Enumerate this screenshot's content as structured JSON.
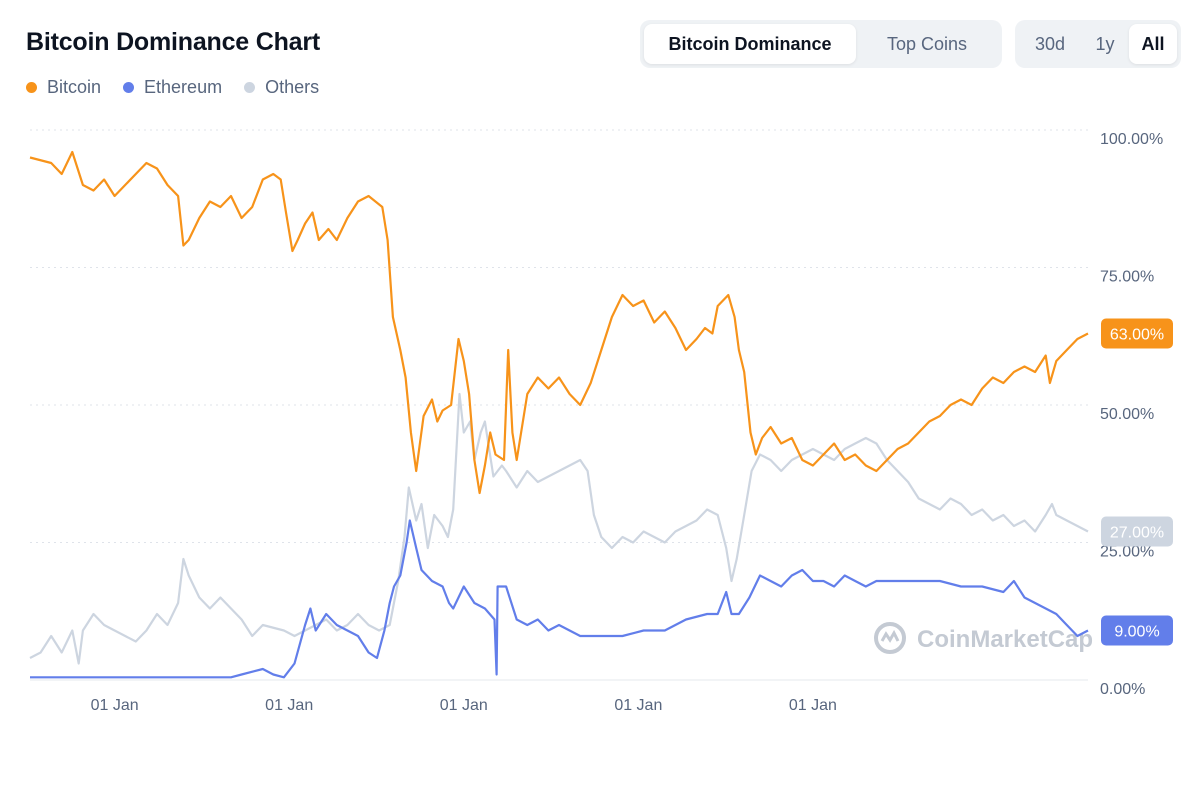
{
  "title": "Bitcoin Dominance Chart",
  "tabs": [
    {
      "label": "Bitcoin Dominance",
      "active": true
    },
    {
      "label": "Top Coins",
      "active": false
    }
  ],
  "ranges": [
    {
      "label": "30d",
      "active": false
    },
    {
      "label": "1y",
      "active": false
    },
    {
      "label": "All",
      "active": true
    }
  ],
  "watermark": "CoinMarketCap",
  "colors": {
    "bitcoin": "#f7931a",
    "ethereum": "#627eea",
    "others": "#cdd5e0",
    "grid": "#dfe3ea"
  },
  "chart_data": {
    "type": "line",
    "title": "Bitcoin Dominance Chart",
    "ylim": [
      0,
      100
    ],
    "yticks": [
      "0.00%",
      "25.00%",
      "50.00%",
      "75.00%",
      "100.00%"
    ],
    "ytick_values": [
      0,
      25,
      50,
      75,
      100
    ],
    "xlim": [
      0,
      100
    ],
    "xticks": [
      "01 Jan",
      "01 Jan",
      "01 Jan",
      "01 Jan",
      "01 Jan"
    ],
    "xtick_values": [
      8,
      24.5,
      41,
      57.5,
      74
    ],
    "legend": [
      "Bitcoin",
      "Ethereum",
      "Others"
    ],
    "series": [
      {
        "name": "Bitcoin",
        "badge": "63.00%",
        "points": [
          [
            0,
            95
          ],
          [
            2,
            94
          ],
          [
            3,
            92
          ],
          [
            4,
            96
          ],
          [
            5,
            90
          ],
          [
            6,
            89
          ],
          [
            7,
            91
          ],
          [
            8,
            88
          ],
          [
            10,
            92
          ],
          [
            11,
            94
          ],
          [
            12,
            93
          ],
          [
            13,
            90
          ],
          [
            14,
            88
          ],
          [
            14.5,
            79
          ],
          [
            15,
            80
          ],
          [
            16,
            84
          ],
          [
            17,
            87
          ],
          [
            18,
            86
          ],
          [
            19,
            88
          ],
          [
            20,
            84
          ],
          [
            21,
            86
          ],
          [
            22,
            91
          ],
          [
            23,
            92
          ],
          [
            23.7,
            91
          ],
          [
            24.2,
            85
          ],
          [
            24.8,
            78
          ],
          [
            25.3,
            80
          ],
          [
            26,
            83
          ],
          [
            26.7,
            85
          ],
          [
            27.3,
            80
          ],
          [
            28.2,
            82
          ],
          [
            29,
            80
          ],
          [
            30,
            84
          ],
          [
            31,
            87
          ],
          [
            32,
            88
          ],
          [
            33.3,
            86
          ],
          [
            33.8,
            80
          ],
          [
            34.3,
            66
          ],
          [
            35,
            60
          ],
          [
            35.5,
            55
          ],
          [
            36,
            45
          ],
          [
            36.5,
            38
          ],
          [
            37.2,
            48
          ],
          [
            38,
            51
          ],
          [
            38.5,
            47
          ],
          [
            39,
            49
          ],
          [
            39.8,
            50
          ],
          [
            40.5,
            62
          ],
          [
            41,
            58
          ],
          [
            41.5,
            52
          ],
          [
            42,
            40
          ],
          [
            42.5,
            34
          ],
          [
            43,
            39
          ],
          [
            43.5,
            45
          ],
          [
            44,
            41
          ],
          [
            44.8,
            40
          ],
          [
            45.2,
            60
          ],
          [
            45.6,
            45
          ],
          [
            46,
            40
          ],
          [
            47,
            52
          ],
          [
            48,
            55
          ],
          [
            49,
            53
          ],
          [
            50,
            55
          ],
          [
            51,
            52
          ],
          [
            52,
            50
          ],
          [
            53,
            54
          ],
          [
            54,
            60
          ],
          [
            55,
            66
          ],
          [
            56,
            70
          ],
          [
            57,
            68
          ],
          [
            58,
            69
          ],
          [
            59,
            65
          ],
          [
            60,
            67
          ],
          [
            61,
            64
          ],
          [
            62,
            60
          ],
          [
            63,
            62
          ],
          [
            63.8,
            64
          ],
          [
            64.5,
            63
          ],
          [
            65,
            68
          ],
          [
            66,
            70
          ],
          [
            66.6,
            66
          ],
          [
            67,
            60
          ],
          [
            67.5,
            56
          ],
          [
            68.1,
            45
          ],
          [
            68.6,
            41
          ],
          [
            69.2,
            44
          ],
          [
            70,
            46
          ],
          [
            71,
            43
          ],
          [
            72,
            44
          ],
          [
            73,
            40
          ],
          [
            74,
            39
          ],
          [
            75,
            41
          ],
          [
            76,
            43
          ],
          [
            77,
            40
          ],
          [
            78,
            41
          ],
          [
            79,
            39
          ],
          [
            80,
            38
          ],
          [
            81,
            40
          ],
          [
            82,
            42
          ],
          [
            83,
            43
          ],
          [
            84,
            45
          ],
          [
            85,
            47
          ],
          [
            86,
            48
          ],
          [
            87,
            50
          ],
          [
            88,
            51
          ],
          [
            89,
            50
          ],
          [
            90,
            53
          ],
          [
            91,
            55
          ],
          [
            92,
            54
          ],
          [
            93,
            56
          ],
          [
            94,
            57
          ],
          [
            95,
            56
          ],
          [
            96,
            59
          ],
          [
            96.4,
            54
          ],
          [
            97,
            58
          ],
          [
            98,
            60
          ],
          [
            99,
            62
          ],
          [
            100,
            63
          ]
        ]
      },
      {
        "name": "Ethereum",
        "badge": "9.00%",
        "points": [
          [
            0,
            0.5
          ],
          [
            19,
            0.5
          ],
          [
            20,
            1
          ],
          [
            22,
            2
          ],
          [
            23,
            1
          ],
          [
            24,
            0.5
          ],
          [
            25,
            3
          ],
          [
            26,
            10
          ],
          [
            26.5,
            13
          ],
          [
            27,
            9
          ],
          [
            28,
            12
          ],
          [
            29,
            10
          ],
          [
            30,
            9
          ],
          [
            31,
            8
          ],
          [
            32,
            5
          ],
          [
            32.8,
            4
          ],
          [
            33.5,
            9
          ],
          [
            34,
            14
          ],
          [
            34.4,
            17
          ],
          [
            35,
            19
          ],
          [
            35.6,
            25
          ],
          [
            35.9,
            29
          ],
          [
            36.5,
            24
          ],
          [
            37,
            20
          ],
          [
            38,
            18
          ],
          [
            39,
            17
          ],
          [
            39.6,
            14
          ],
          [
            40,
            13
          ],
          [
            41,
            17
          ],
          [
            42,
            14
          ],
          [
            43,
            13
          ],
          [
            43.9,
            11
          ],
          [
            44.1,
            1
          ],
          [
            44.2,
            17
          ],
          [
            45,
            17
          ],
          [
            46,
            11
          ],
          [
            47,
            10
          ],
          [
            48,
            11
          ],
          [
            49,
            9
          ],
          [
            50,
            10
          ],
          [
            51,
            9
          ],
          [
            52,
            8
          ],
          [
            54,
            8
          ],
          [
            56,
            8
          ],
          [
            58,
            9
          ],
          [
            60,
            9
          ],
          [
            62,
            11
          ],
          [
            64,
            12
          ],
          [
            65,
            12
          ],
          [
            65.8,
            16
          ],
          [
            66.3,
            12
          ],
          [
            67,
            12
          ],
          [
            68,
            15
          ],
          [
            69,
            19
          ],
          [
            70,
            18
          ],
          [
            71,
            17
          ],
          [
            72,
            19
          ],
          [
            73,
            20
          ],
          [
            74,
            18
          ],
          [
            75,
            18
          ],
          [
            76,
            17
          ],
          [
            77,
            19
          ],
          [
            78,
            18
          ],
          [
            79,
            17
          ],
          [
            80,
            18
          ],
          [
            82,
            18
          ],
          [
            84,
            18
          ],
          [
            86,
            18
          ],
          [
            88,
            17
          ],
          [
            90,
            17
          ],
          [
            92,
            16
          ],
          [
            93,
            18
          ],
          [
            94,
            15
          ],
          [
            95,
            14
          ],
          [
            96,
            13
          ],
          [
            97,
            12
          ],
          [
            98,
            10
          ],
          [
            99,
            8
          ],
          [
            100,
            9
          ]
        ]
      },
      {
        "name": "Others",
        "badge": "27.00%",
        "points": [
          [
            0,
            4
          ],
          [
            1,
            5
          ],
          [
            2,
            8
          ],
          [
            3,
            5
          ],
          [
            4,
            9
          ],
          [
            4.6,
            3
          ],
          [
            5,
            9
          ],
          [
            6,
            12
          ],
          [
            7,
            10
          ],
          [
            8,
            9
          ],
          [
            9,
            8
          ],
          [
            10,
            7
          ],
          [
            11,
            9
          ],
          [
            12,
            12
          ],
          [
            13,
            10
          ],
          [
            14,
            14
          ],
          [
            14.5,
            22
          ],
          [
            15,
            19
          ],
          [
            16,
            15
          ],
          [
            17,
            13
          ],
          [
            18,
            15
          ],
          [
            19,
            13
          ],
          [
            20,
            11
          ],
          [
            21,
            8
          ],
          [
            22,
            10
          ],
          [
            24,
            9
          ],
          [
            25,
            8
          ],
          [
            26,
            9
          ],
          [
            27,
            10
          ],
          [
            28,
            11
          ],
          [
            29,
            9
          ],
          [
            30,
            10
          ],
          [
            31,
            12
          ],
          [
            32,
            10
          ],
          [
            33,
            9
          ],
          [
            34,
            10
          ],
          [
            34.8,
            18
          ],
          [
            35.4,
            26
          ],
          [
            35.8,
            35
          ],
          [
            36.5,
            29
          ],
          [
            37,
            32
          ],
          [
            37.6,
            24
          ],
          [
            38.2,
            30
          ],
          [
            39,
            28
          ],
          [
            39.5,
            26
          ],
          [
            40,
            31
          ],
          [
            40.6,
            52
          ],
          [
            41,
            45
          ],
          [
            41.6,
            47
          ],
          [
            42,
            40
          ],
          [
            42.6,
            45
          ],
          [
            43,
            47
          ],
          [
            43.8,
            37
          ],
          [
            44.6,
            39
          ],
          [
            45,
            38
          ],
          [
            46,
            35
          ],
          [
            47,
            38
          ],
          [
            48,
            36
          ],
          [
            49,
            37
          ],
          [
            50,
            38
          ],
          [
            51,
            39
          ],
          [
            52,
            40
          ],
          [
            52.7,
            38
          ],
          [
            53.3,
            30
          ],
          [
            54,
            26
          ],
          [
            55,
            24
          ],
          [
            56,
            26
          ],
          [
            57,
            25
          ],
          [
            58,
            27
          ],
          [
            59,
            26
          ],
          [
            60,
            25
          ],
          [
            61,
            27
          ],
          [
            62,
            28
          ],
          [
            63,
            29
          ],
          [
            64,
            31
          ],
          [
            65,
            30
          ],
          [
            65.8,
            24
          ],
          [
            66.3,
            18
          ],
          [
            66.8,
            22
          ],
          [
            67.5,
            30
          ],
          [
            68.2,
            38
          ],
          [
            69,
            41
          ],
          [
            70,
            40
          ],
          [
            71,
            38
          ],
          [
            72,
            40
          ],
          [
            73,
            41
          ],
          [
            74,
            42
          ],
          [
            75,
            41
          ],
          [
            76,
            40
          ],
          [
            77,
            42
          ],
          [
            78,
            43
          ],
          [
            79,
            44
          ],
          [
            80,
            43
          ],
          [
            81,
            40
          ],
          [
            82,
            38
          ],
          [
            83,
            36
          ],
          [
            84,
            33
          ],
          [
            85,
            32
          ],
          [
            86,
            31
          ],
          [
            87,
            33
          ],
          [
            88,
            32
          ],
          [
            89,
            30
          ],
          [
            90,
            31
          ],
          [
            91,
            29
          ],
          [
            92,
            30
          ],
          [
            93,
            28
          ],
          [
            94,
            29
          ],
          [
            95,
            27
          ],
          [
            96,
            30
          ],
          [
            96.6,
            32
          ],
          [
            97,
            30
          ],
          [
            98,
            29
          ],
          [
            99,
            28
          ],
          [
            100,
            27
          ]
        ]
      }
    ]
  }
}
